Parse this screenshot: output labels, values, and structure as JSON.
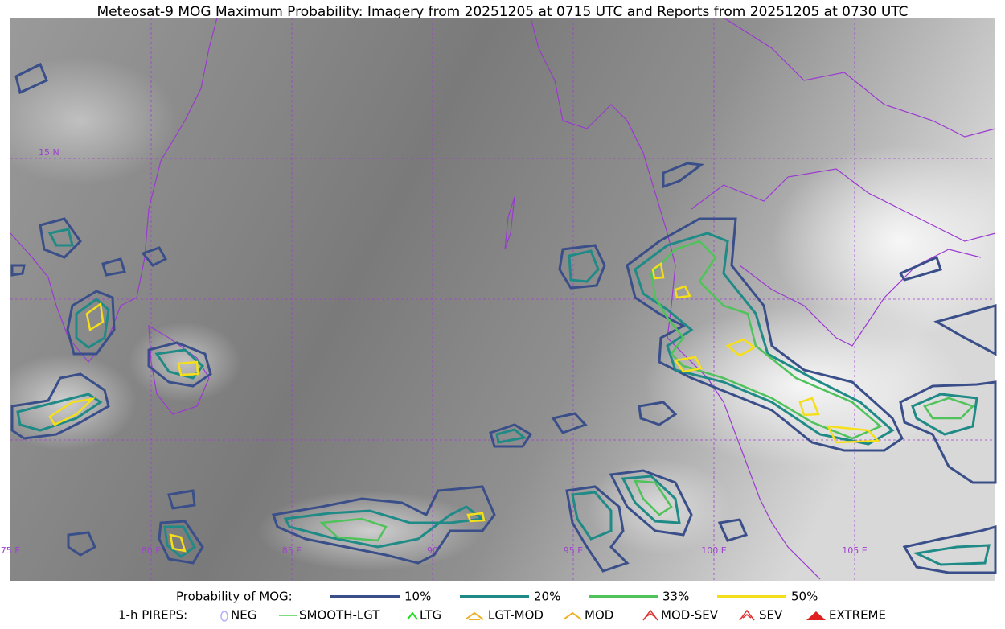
{
  "title": "Meteosat-9 MOG Maximum Probability: Imagery from 20251205 at 0715 UTC and Reports from 20251205 at 0730 UTC",
  "map": {
    "lat_labels": [
      "15 N"
    ],
    "lon_labels": [
      "75 E",
      "80 E",
      "85 E",
      "90",
      "95 E",
      "100 E",
      "105 E"
    ]
  },
  "legend": {
    "probability": {
      "label": "Probability of MOG:",
      "items": [
        "10%",
        "20%",
        "33%",
        "50%"
      ]
    },
    "pireps": {
      "label": "1-h PIREPS:",
      "items": [
        "NEG",
        "SMOOTH-LGT",
        "LTG",
        "LGT-MOD",
        "MOD",
        "MOD-SEV",
        "SEV",
        "EXTREME"
      ]
    }
  }
}
